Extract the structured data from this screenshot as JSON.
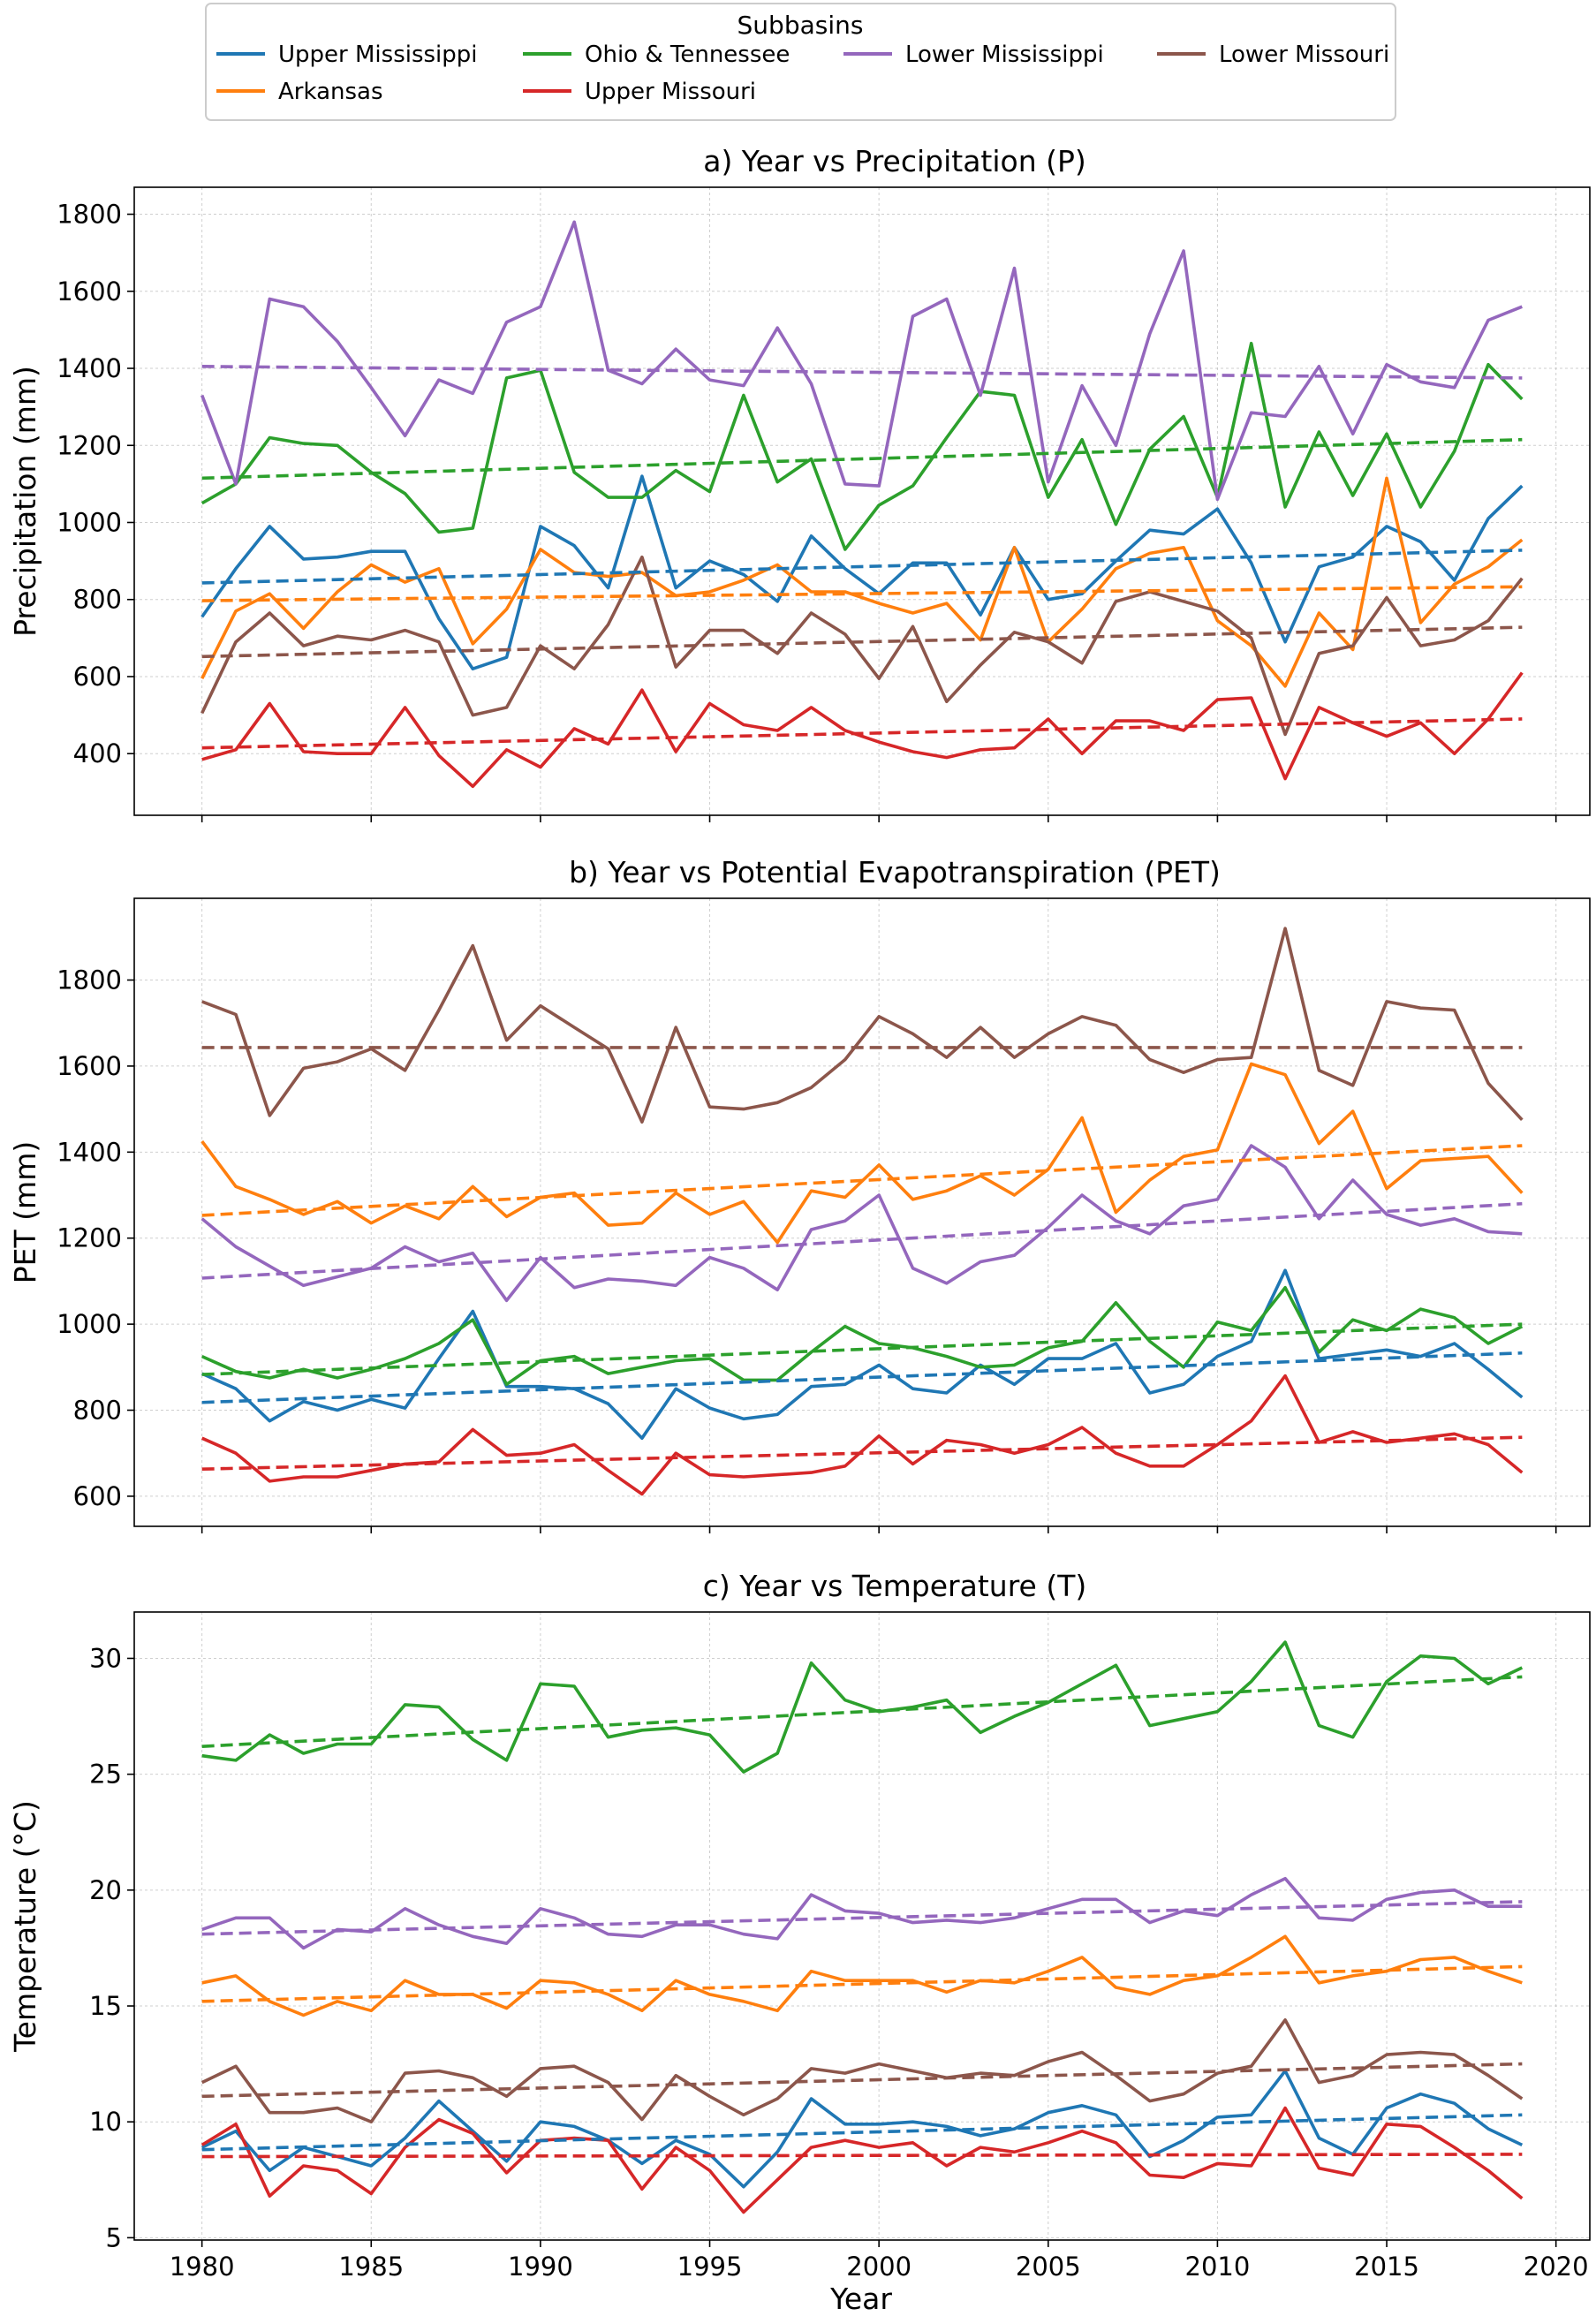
{
  "legend": {
    "title": "Subbasins",
    "entries": [
      {
        "name": "Upper Mississippi",
        "color": "#1f77b4"
      },
      {
        "name": "Arkansas",
        "color": "#ff7f0e"
      },
      {
        "name": "Ohio & Tennessee",
        "color": "#2ca02c"
      },
      {
        "name": "Upper Missouri",
        "color": "#d62728"
      },
      {
        "name": "Lower Mississippi",
        "color": "#9467bd"
      },
      {
        "name": "Lower Missouri",
        "color": "#8c564b"
      }
    ]
  },
  "xlabel": "Year",
  "chart_data": [
    {
      "type": "line",
      "title": "a) Year vs Precipitation (P)",
      "ylabel": "Precipitation (mm)",
      "xlim": [
        1978,
        2021
      ],
      "ylim": [
        240,
        1870
      ],
      "xticks": [
        1980,
        1985,
        1990,
        1995,
        2000,
        2005,
        2010,
        2015,
        2020
      ],
      "yticks": [
        400,
        600,
        800,
        1000,
        1200,
        1400,
        1600,
        1800
      ],
      "show_xtick_labels": false,
      "x": [
        1980,
        1981,
        1982,
        1983,
        1984,
        1985,
        1986,
        1987,
        1988,
        1989,
        1990,
        1991,
        1992,
        1993,
        1994,
        1995,
        1996,
        1997,
        1998,
        1999,
        2000,
        2001,
        2002,
        2003,
        2004,
        2005,
        2006,
        2007,
        2008,
        2009,
        2010,
        2011,
        2012,
        2013,
        2014,
        2015,
        2016,
        2017,
        2018,
        2019
      ],
      "series": [
        {
          "name": "Upper Mississippi",
          "color": "#1f77b4",
          "trend": [
            843,
            928
          ],
          "values": [
            755,
            880,
            990,
            905,
            910,
            925,
            925,
            750,
            620,
            650,
            990,
            940,
            830,
            1120,
            830,
            900,
            865,
            795,
            965,
            880,
            815,
            895,
            895,
            760,
            935,
            800,
            815,
            900,
            980,
            970,
            1035,
            895,
            690,
            885,
            910,
            990,
            950,
            850,
            1010,
            1095
          ]
        },
        {
          "name": "Arkansas",
          "color": "#ff7f0e",
          "trend": [
            797,
            833
          ],
          "values": [
            595,
            770,
            815,
            725,
            820,
            890,
            845,
            880,
            685,
            775,
            930,
            870,
            860,
            870,
            810,
            820,
            850,
            890,
            820,
            820,
            790,
            765,
            790,
            695,
            935,
            690,
            775,
            880,
            920,
            935,
            745,
            680,
            575,
            765,
            670,
            1115,
            740,
            840,
            885,
            955
          ]
        },
        {
          "name": "Ohio & Tennessee",
          "color": "#2ca02c",
          "trend": [
            1115,
            1215
          ],
          "values": [
            1050,
            1100,
            1220,
            1205,
            1200,
            1130,
            1075,
            975,
            985,
            1375,
            1395,
            1130,
            1065,
            1065,
            1135,
            1080,
            1330,
            1105,
            1165,
            930,
            1045,
            1095,
            1220,
            1340,
            1330,
            1065,
            1215,
            995,
            1190,
            1275,
            1065,
            1465,
            1040,
            1235,
            1070,
            1230,
            1040,
            1185,
            1410,
            1320
          ]
        },
        {
          "name": "Upper Missouri",
          "color": "#d62728",
          "trend": [
            415,
            490
          ],
          "values": [
            385,
            410,
            530,
            405,
            400,
            400,
            520,
            395,
            315,
            410,
            365,
            465,
            425,
            565,
            405,
            530,
            475,
            460,
            520,
            460,
            430,
            405,
            390,
            410,
            415,
            490,
            400,
            485,
            485,
            460,
            540,
            545,
            335,
            520,
            480,
            445,
            480,
            400,
            490,
            610
          ]
        },
        {
          "name": "Lower Mississippi",
          "color": "#9467bd",
          "trend": [
            1405,
            1375
          ],
          "values": [
            1330,
            1100,
            1580,
            1560,
            1470,
            1350,
            1225,
            1370,
            1335,
            1520,
            1560,
            1780,
            1395,
            1360,
            1450,
            1370,
            1355,
            1505,
            1360,
            1100,
            1095,
            1535,
            1580,
            1330,
            1660,
            1105,
            1355,
            1200,
            1490,
            1705,
            1060,
            1285,
            1275,
            1405,
            1230,
            1410,
            1365,
            1350,
            1525,
            1560
          ]
        },
        {
          "name": "Lower Missouri",
          "color": "#8c564b",
          "trend": [
            652,
            728
          ],
          "values": [
            505,
            690,
            765,
            680,
            705,
            695,
            720,
            690,
            500,
            520,
            680,
            620,
            735,
            910,
            625,
            720,
            720,
            660,
            765,
            710,
            595,
            730,
            535,
            630,
            715,
            690,
            635,
            795,
            820,
            795,
            770,
            700,
            450,
            660,
            680,
            805,
            680,
            695,
            745,
            855
          ]
        }
      ]
    },
    {
      "type": "line",
      "title": "b) Year vs Potential Evapotranspiration (PET)",
      "ylabel": "PET (mm)",
      "xlim": [
        1978,
        2021
      ],
      "ylim": [
        530,
        1990
      ],
      "xticks": [
        1980,
        1985,
        1990,
        1995,
        2000,
        2005,
        2010,
        2015,
        2020
      ],
      "yticks": [
        600,
        800,
        1000,
        1200,
        1400,
        1600,
        1800
      ],
      "show_xtick_labels": false,
      "x": [
        1980,
        1981,
        1982,
        1983,
        1984,
        1985,
        1986,
        1987,
        1988,
        1989,
        1990,
        1991,
        1992,
        1993,
        1994,
        1995,
        1996,
        1997,
        1998,
        1999,
        2000,
        2001,
        2002,
        2003,
        2004,
        2005,
        2006,
        2007,
        2008,
        2009,
        2010,
        2011,
        2012,
        2013,
        2014,
        2015,
        2016,
        2017,
        2018,
        2019
      ],
      "series": [
        {
          "name": "Upper Mississippi",
          "color": "#1f77b4",
          "trend": [
            818,
            933
          ],
          "values": [
            885,
            850,
            775,
            820,
            800,
            825,
            805,
            920,
            1030,
            855,
            855,
            850,
            815,
            735,
            850,
            805,
            780,
            790,
            855,
            860,
            905,
            850,
            840,
            905,
            860,
            920,
            920,
            955,
            840,
            860,
            925,
            960,
            1125,
            920,
            930,
            940,
            925,
            955,
            895,
            830
          ]
        },
        {
          "name": "Arkansas",
          "color": "#ff7f0e",
          "trend": [
            1253,
            1415
          ],
          "values": [
            1425,
            1320,
            1290,
            1255,
            1285,
            1235,
            1275,
            1245,
            1320,
            1250,
            1295,
            1305,
            1230,
            1235,
            1305,
            1255,
            1285,
            1190,
            1310,
            1295,
            1370,
            1290,
            1310,
            1345,
            1300,
            1360,
            1480,
            1260,
            1335,
            1390,
            1405,
            1605,
            1580,
            1420,
            1495,
            1315,
            1380,
            1385,
            1390,
            1305
          ]
        },
        {
          "name": "Ohio & Tennessee",
          "color": "#2ca02c",
          "trend": [
            883,
            1000
          ],
          "values": [
            925,
            890,
            875,
            895,
            875,
            895,
            920,
            955,
            1010,
            860,
            915,
            925,
            885,
            900,
            915,
            920,
            870,
            870,
            935,
            995,
            955,
            945,
            925,
            900,
            905,
            945,
            960,
            1050,
            960,
            900,
            1005,
            985,
            1085,
            935,
            1010,
            985,
            1035,
            1015,
            955,
            995
          ]
        },
        {
          "name": "Upper Missouri",
          "color": "#d62728",
          "trend": [
            663,
            737
          ],
          "values": [
            735,
            700,
            635,
            645,
            645,
            660,
            675,
            680,
            755,
            695,
            700,
            720,
            660,
            605,
            700,
            650,
            645,
            650,
            655,
            670,
            740,
            675,
            730,
            720,
            700,
            720,
            760,
            700,
            670,
            670,
            720,
            775,
            880,
            725,
            750,
            725,
            735,
            745,
            720,
            655
          ]
        },
        {
          "name": "Lower Mississippi",
          "color": "#9467bd",
          "trend": [
            1107,
            1280
          ],
          "values": [
            1245,
            1180,
            1135,
            1090,
            1110,
            1130,
            1180,
            1145,
            1165,
            1055,
            1155,
            1085,
            1105,
            1100,
            1090,
            1155,
            1130,
            1080,
            1220,
            1240,
            1300,
            1130,
            1095,
            1145,
            1160,
            1225,
            1300,
            1240,
            1210,
            1275,
            1290,
            1415,
            1365,
            1245,
            1335,
            1255,
            1230,
            1245,
            1215,
            1210
          ]
        },
        {
          "name": "Lower Missouri",
          "color": "#8c564b",
          "trend": [
            1643,
            1643
          ],
          "values": [
            1750,
            1720,
            1485,
            1595,
            1610,
            1640,
            1590,
            1730,
            1880,
            1660,
            1740,
            1690,
            1640,
            1470,
            1690,
            1505,
            1500,
            1515,
            1550,
            1615,
            1715,
            1675,
            1620,
            1690,
            1620,
            1675,
            1715,
            1695,
            1615,
            1585,
            1615,
            1620,
            1920,
            1590,
            1555,
            1750,
            1735,
            1730,
            1560,
            1475
          ]
        }
      ]
    },
    {
      "type": "line",
      "title": "c) Year vs Temperature (T)",
      "ylabel": "Temperature (°C)",
      "xlim": [
        1978,
        2021
      ],
      "ylim": [
        4.9,
        32.0
      ],
      "xticks": [
        1980,
        1985,
        1990,
        1995,
        2000,
        2005,
        2010,
        2015,
        2020
      ],
      "yticks": [
        5,
        10,
        15,
        20,
        25,
        30
      ],
      "show_xtick_labels": true,
      "x": [
        1980,
        1981,
        1982,
        1983,
        1984,
        1985,
        1986,
        1987,
        1988,
        1989,
        1990,
        1991,
        1992,
        1993,
        1994,
        1995,
        1996,
        1997,
        1998,
        1999,
        2000,
        2001,
        2002,
        2003,
        2004,
        2005,
        2006,
        2007,
        2008,
        2009,
        2010,
        2011,
        2012,
        2013,
        2014,
        2015,
        2016,
        2017,
        2018,
        2019
      ],
      "series": [
        {
          "name": "Upper Mississippi",
          "color": "#1f77b4",
          "trend": [
            8.8,
            10.3
          ],
          "values": [
            8.9,
            9.6,
            7.9,
            8.9,
            8.5,
            8.1,
            9.3,
            10.9,
            9.6,
            8.3,
            10.0,
            9.8,
            9.2,
            8.2,
            9.2,
            8.6,
            7.2,
            8.7,
            11.0,
            9.9,
            9.9,
            10.0,
            9.8,
            9.4,
            9.7,
            10.4,
            10.7,
            10.3,
            8.5,
            9.2,
            10.2,
            10.3,
            12.2,
            9.3,
            8.6,
            10.6,
            11.2,
            10.8,
            9.7,
            9.0
          ]
        },
        {
          "name": "Arkansas",
          "color": "#ff7f0e",
          "trend": [
            15.2,
            16.7
          ],
          "values": [
            16.0,
            16.3,
            15.2,
            14.6,
            15.2,
            14.8,
            16.1,
            15.5,
            15.5,
            14.9,
            16.1,
            16.0,
            15.5,
            14.8,
            16.1,
            15.5,
            15.2,
            14.8,
            16.5,
            16.1,
            16.1,
            16.1,
            15.6,
            16.1,
            16.0,
            16.5,
            17.1,
            15.8,
            15.5,
            16.1,
            16.3,
            17.1,
            18.0,
            16.0,
            16.3,
            16.5,
            17.0,
            17.1,
            16.5,
            16.0
          ]
        },
        {
          "name": "Ohio & Tennessee",
          "color": "#2ca02c",
          "trend": [
            26.2,
            29.2
          ],
          "values": [
            25.8,
            25.6,
            26.7,
            25.9,
            26.3,
            26.3,
            28.0,
            27.9,
            26.5,
            25.6,
            28.9,
            28.8,
            26.6,
            26.9,
            27.0,
            26.7,
            25.1,
            25.9,
            29.8,
            28.2,
            27.7,
            27.9,
            28.2,
            26.8,
            27.5,
            28.1,
            28.9,
            29.7,
            27.1,
            27.4,
            27.7,
            29.0,
            30.7,
            27.1,
            26.6,
            29.0,
            30.1,
            30.0,
            28.9,
            29.6
          ]
        },
        {
          "name": "Upper Missouri",
          "color": "#d62728",
          "trend": [
            8.5,
            8.6
          ],
          "values": [
            9.0,
            9.9,
            6.8,
            8.1,
            7.9,
            6.9,
            8.9,
            10.1,
            9.5,
            7.8,
            9.2,
            9.3,
            9.2,
            7.1,
            8.9,
            7.9,
            6.1,
            7.5,
            8.9,
            9.2,
            8.9,
            9.1,
            8.1,
            8.9,
            8.7,
            9.1,
            9.6,
            9.1,
            7.7,
            7.6,
            8.2,
            8.1,
            10.6,
            8.0,
            7.7,
            9.9,
            9.8,
            8.9,
            7.9,
            6.7
          ]
        },
        {
          "name": "Lower Mississippi",
          "color": "#9467bd",
          "trend": [
            18.1,
            19.5
          ],
          "values": [
            18.3,
            18.8,
            18.8,
            17.5,
            18.3,
            18.2,
            19.2,
            18.5,
            18.0,
            17.7,
            19.2,
            18.8,
            18.1,
            18.0,
            18.5,
            18.5,
            18.1,
            17.9,
            19.8,
            19.1,
            19.0,
            18.6,
            18.7,
            18.6,
            18.8,
            19.2,
            19.6,
            19.6,
            18.6,
            19.1,
            18.9,
            19.8,
            20.5,
            18.8,
            18.7,
            19.6,
            19.9,
            20.0,
            19.3,
            19.3
          ]
        },
        {
          "name": "Lower Missouri",
          "color": "#8c564b",
          "trend": [
            11.1,
            12.5
          ],
          "values": [
            11.7,
            12.4,
            10.4,
            10.4,
            10.6,
            10.0,
            12.1,
            12.2,
            11.9,
            11.1,
            12.3,
            12.4,
            11.7,
            10.1,
            12.0,
            11.1,
            10.3,
            11.0,
            12.3,
            12.1,
            12.5,
            12.2,
            11.9,
            12.1,
            12.0,
            12.6,
            13.0,
            12.0,
            10.9,
            11.2,
            12.1,
            12.4,
            14.4,
            11.7,
            12.0,
            12.9,
            13.0,
            12.9,
            12.0,
            11.0
          ]
        }
      ]
    }
  ]
}
